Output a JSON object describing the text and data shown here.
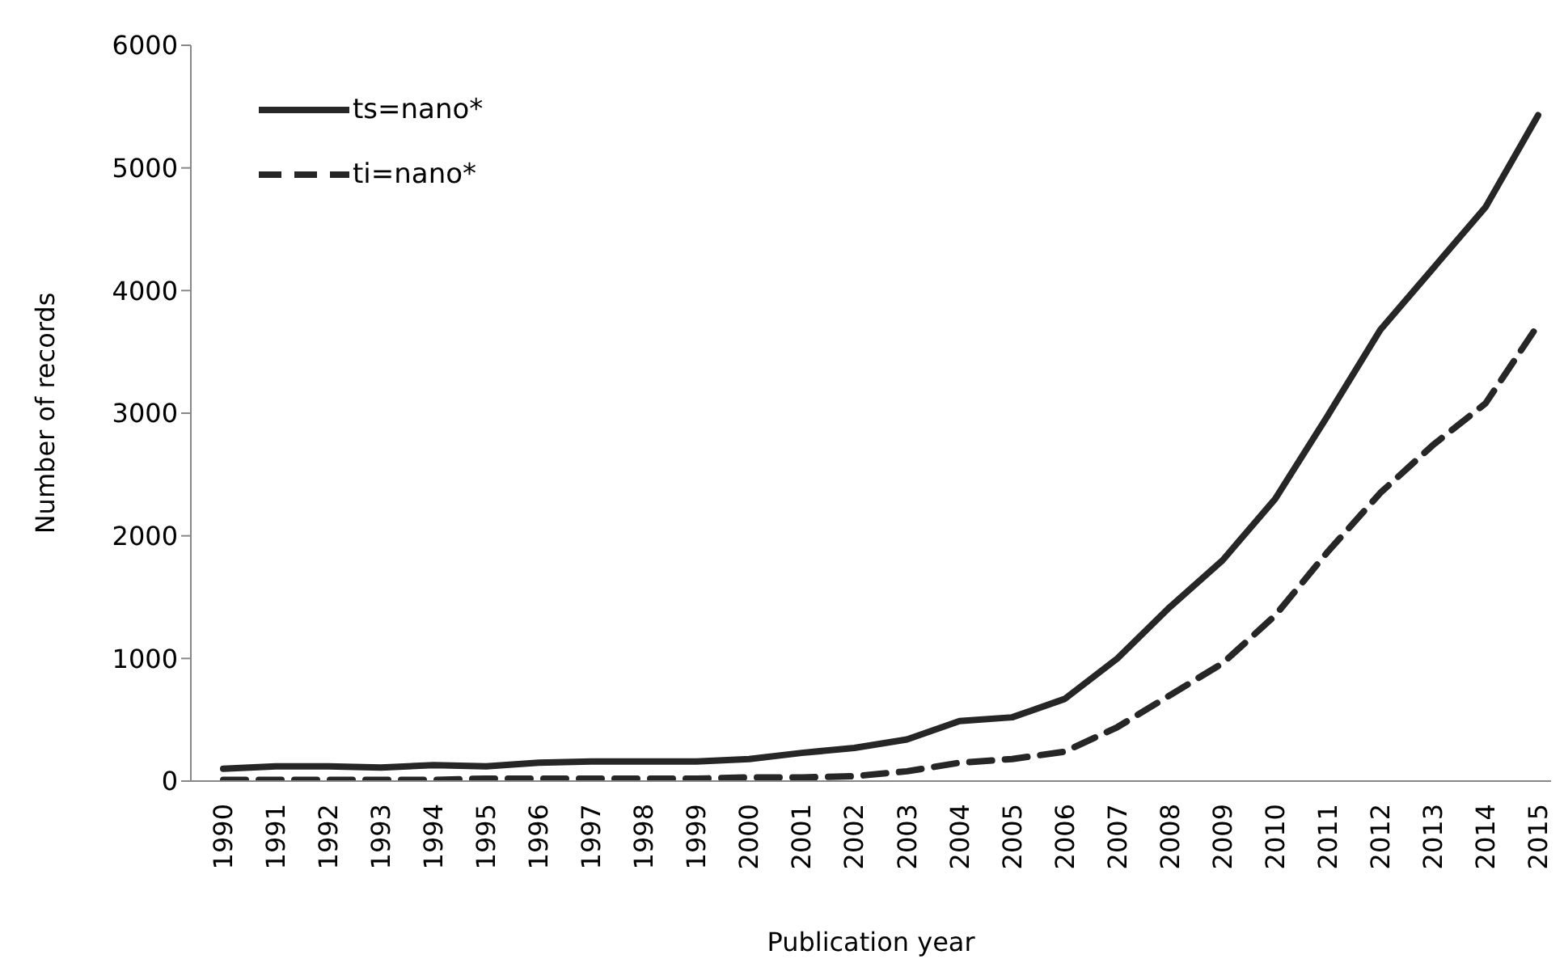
{
  "chart_data": {
    "type": "line",
    "xlabel": "Publication year",
    "ylabel": "Number of records",
    "categories": [
      "1990",
      "1991",
      "1992",
      "1993",
      "1994",
      "1995",
      "1996",
      "1997",
      "1998",
      "1999",
      "2000",
      "2001",
      "2002",
      "2003",
      "2004",
      "2005",
      "2006",
      "2007",
      "2008",
      "2009",
      "2010",
      "2011",
      "2012",
      "2013",
      "2014",
      "2015"
    ],
    "series": [
      {
        "name": "ts=nano*",
        "color": "#262626",
        "line_style": "solid",
        "values": [
          100,
          120,
          120,
          110,
          130,
          120,
          150,
          160,
          160,
          160,
          180,
          230,
          270,
          340,
          490,
          520,
          670,
          1000,
          1420,
          1800,
          2300,
          2980,
          3680,
          4180,
          4680,
          5430
        ]
      },
      {
        "name": "ti=nano*",
        "color": "#262626",
        "line_style": "dashed",
        "values": [
          10,
          10,
          10,
          10,
          10,
          20,
          20,
          20,
          20,
          20,
          30,
          30,
          40,
          80,
          150,
          180,
          240,
          440,
          700,
          960,
          1350,
          1870,
          2350,
          2740,
          3080,
          3720
        ]
      }
    ],
    "ylim": [
      0,
      6000
    ],
    "yticks": [
      0,
      1000,
      2000,
      3000,
      4000,
      5000,
      6000
    ],
    "legend": "top left"
  }
}
